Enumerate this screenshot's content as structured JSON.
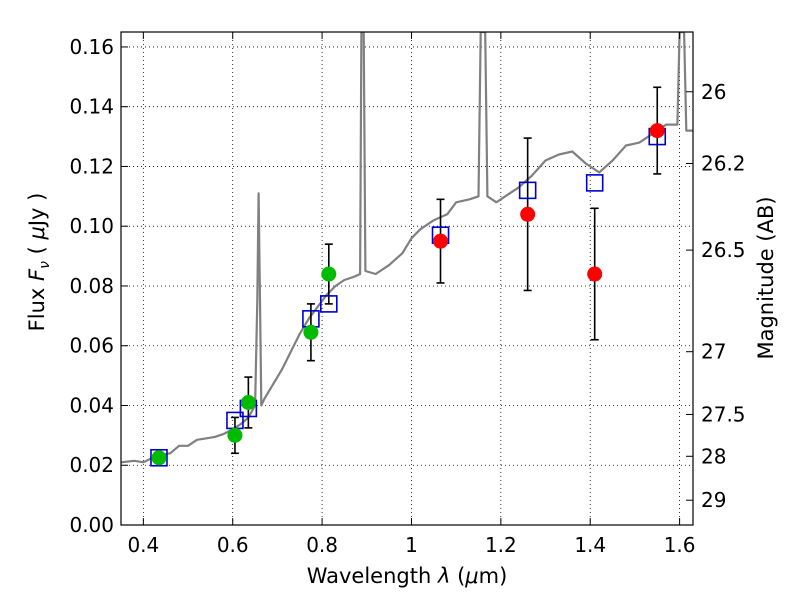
{
  "chart_data": {
    "type": "scatter",
    "xlabel_parts": [
      "Wavelength  ",
      "λ",
      " (",
      "μ",
      "m)"
    ],
    "ylabel_parts": [
      "Flux  ",
      "F",
      "ν",
      "  ( ",
      "μ",
      "Jy )"
    ],
    "ylabel_right": "Magnitude (AB)",
    "xlim": [
      0.35,
      1.63
    ],
    "ylim": [
      0.0,
      0.165
    ],
    "x_ticks": [
      0.4,
      0.6,
      0.8,
      1.0,
      1.2,
      1.4,
      1.6
    ],
    "x_tick_labels": [
      "0.4",
      "0.6",
      "0.8",
      "1",
      "1.2",
      "1.4",
      "1.6"
    ],
    "y_ticks": [
      0.0,
      0.02,
      0.04,
      0.06,
      0.08,
      0.1,
      0.12,
      0.14,
      0.16
    ],
    "y_tick_labels": [
      "0.00",
      "0.02",
      "0.04",
      "0.06",
      "0.08",
      "0.10",
      "0.12",
      "0.14",
      "0.16"
    ],
    "right_ticks": [
      {
        "label": "26",
        "flux": 0.145
      },
      {
        "label": "26.2",
        "flux": 0.121
      },
      {
        "label": "26.5",
        "flux": 0.092
      },
      {
        "label": "27",
        "flux": 0.058
      },
      {
        "label": "27.5",
        "flux": 0.037
      },
      {
        "label": "28",
        "flux": 0.023
      },
      {
        "label": "29",
        "flux": 0.0083
      }
    ],
    "grid": true,
    "colors": {
      "spectrum": "#808080",
      "green_points": "#00bb00",
      "red_points": "#ff0000",
      "model_squares": "#0000cc",
      "error_bars": "#000000"
    },
    "series": [
      {
        "kind": "spectrum",
        "points": [
          [
            0.35,
            0.021
          ],
          [
            0.38,
            0.0215
          ],
          [
            0.4,
            0.021
          ],
          [
            0.42,
            0.0225
          ],
          [
            0.44,
            0.0235
          ],
          [
            0.46,
            0.024
          ],
          [
            0.48,
            0.0265
          ],
          [
            0.5,
            0.0265
          ],
          [
            0.52,
            0.0285
          ],
          [
            0.54,
            0.029
          ],
          [
            0.56,
            0.0295
          ],
          [
            0.58,
            0.0305
          ],
          [
            0.6,
            0.032
          ],
          [
            0.62,
            0.034
          ],
          [
            0.635,
            0.036
          ],
          [
            0.65,
            0.04
          ],
          [
            0.655,
            0.075
          ],
          [
            0.658,
            0.111
          ],
          [
            0.661,
            0.075
          ],
          [
            0.664,
            0.04
          ],
          [
            0.67,
            0.042
          ],
          [
            0.69,
            0.047
          ],
          [
            0.71,
            0.052
          ],
          [
            0.73,
            0.058
          ],
          [
            0.75,
            0.064
          ],
          [
            0.77,
            0.069
          ],
          [
            0.79,
            0.073
          ],
          [
            0.81,
            0.077
          ],
          [
            0.83,
            0.08
          ],
          [
            0.85,
            0.082
          ],
          [
            0.87,
            0.083
          ],
          [
            0.885,
            0.084
          ],
          [
            0.888,
            0.165
          ],
          [
            0.893,
            0.165
          ],
          [
            0.897,
            0.085
          ],
          [
            0.92,
            0.084
          ],
          [
            0.95,
            0.087
          ],
          [
            0.98,
            0.091
          ],
          [
            1.0,
            0.096
          ],
          [
            1.02,
            0.099
          ],
          [
            1.05,
            0.102
          ],
          [
            1.08,
            0.104
          ],
          [
            1.1,
            0.108
          ],
          [
            1.13,
            0.109
          ],
          [
            1.15,
            0.11
          ],
          [
            1.155,
            0.165
          ],
          [
            1.165,
            0.165
          ],
          [
            1.17,
            0.11
          ],
          [
            1.19,
            0.108
          ],
          [
            1.21,
            0.11
          ],
          [
            1.24,
            0.113
          ],
          [
            1.27,
            0.117
          ],
          [
            1.3,
            0.122
          ],
          [
            1.33,
            0.124
          ],
          [
            1.36,
            0.125
          ],
          [
            1.39,
            0.121
          ],
          [
            1.42,
            0.118
          ],
          [
            1.45,
            0.122
          ],
          [
            1.48,
            0.127
          ],
          [
            1.51,
            0.128
          ],
          [
            1.54,
            0.131
          ],
          [
            1.57,
            0.134
          ],
          [
            1.595,
            0.134
          ],
          [
            1.6,
            0.165
          ],
          [
            1.61,
            0.165
          ],
          [
            1.615,
            0.132
          ],
          [
            1.63,
            0.132
          ]
        ]
      },
      {
        "kind": "green_points",
        "points": [
          {
            "x": 0.435,
            "y": 0.0225,
            "err": 0.0
          },
          {
            "x": 0.605,
            "y": 0.03,
            "err": 0.006
          },
          {
            "x": 0.635,
            "y": 0.041,
            "err": 0.0085
          },
          {
            "x": 0.775,
            "y": 0.0645,
            "err": 0.0095
          },
          {
            "x": 0.815,
            "y": 0.084,
            "err": 0.01
          }
        ]
      },
      {
        "kind": "red_points",
        "points": [
          {
            "x": 1.065,
            "y": 0.095,
            "err": 0.014
          },
          {
            "x": 1.26,
            "y": 0.104,
            "err": 0.0255
          },
          {
            "x": 1.41,
            "y": 0.084,
            "err": 0.022
          },
          {
            "x": 1.55,
            "y": 0.132,
            "err": 0.0145
          }
        ]
      },
      {
        "kind": "model_squares",
        "points": [
          {
            "x": 0.435,
            "y": 0.0225
          },
          {
            "x": 0.605,
            "y": 0.035
          },
          {
            "x": 0.635,
            "y": 0.039
          },
          {
            "x": 0.775,
            "y": 0.069
          },
          {
            "x": 0.815,
            "y": 0.074
          },
          {
            "x": 1.065,
            "y": 0.097
          },
          {
            "x": 1.26,
            "y": 0.112
          },
          {
            "x": 1.41,
            "y": 0.1145
          },
          {
            "x": 1.55,
            "y": 0.13
          }
        ]
      }
    ]
  }
}
